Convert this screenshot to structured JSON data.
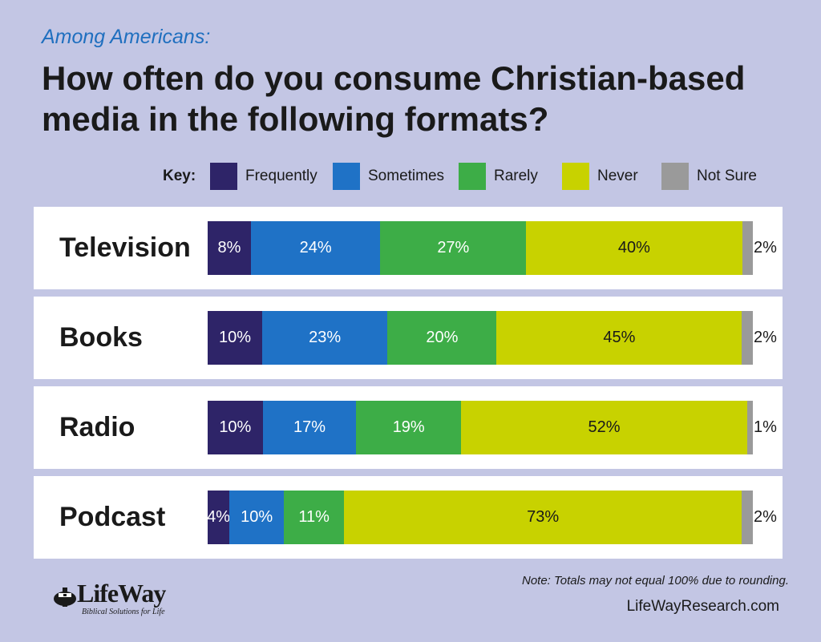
{
  "header": {
    "subtitle": "Among Americans:",
    "title": "How often do you consume Christian-based media in the following formats?"
  },
  "legend": {
    "key_label": "Key:",
    "items": [
      {
        "label": "Frequently",
        "color": "#2e2468"
      },
      {
        "label": "Sometimes",
        "color": "#1f72c6"
      },
      {
        "label": "Rarely",
        "color": "#3dad47"
      },
      {
        "label": "Never",
        "color": "#c8d200"
      },
      {
        "label": "Not Sure",
        "color": "#9a9a9a"
      }
    ]
  },
  "chart_data": {
    "type": "bar",
    "orientation": "horizontal",
    "stacked": true,
    "categories": [
      "Television",
      "Books",
      "Radio",
      "Podcast"
    ],
    "series": [
      {
        "name": "Frequently",
        "values": [
          8,
          10,
          10,
          4
        ],
        "labels": [
          "8%",
          "10%",
          "10%",
          "4%"
        ]
      },
      {
        "name": "Sometimes",
        "values": [
          24,
          23,
          17,
          10
        ],
        "labels": [
          "24%",
          "23%",
          "17%",
          "10%"
        ]
      },
      {
        "name": "Rarely",
        "values": [
          27,
          20,
          19,
          11
        ],
        "labels": [
          "27%",
          "20%",
          "19%",
          "11%"
        ]
      },
      {
        "name": "Never",
        "values": [
          40,
          45,
          52,
          73
        ],
        "labels": [
          "40%",
          "45%",
          "52%",
          "73%"
        ]
      },
      {
        "name": "Not Sure",
        "values": [
          2,
          2,
          1,
          2
        ],
        "labels": [
          "2%",
          "2%",
          "1%",
          "2%"
        ]
      }
    ],
    "title": "How often do you consume Christian-based media in the following formats?",
    "subtitle": "Among Americans:",
    "legend_position": "top"
  },
  "footer": {
    "note": "Note: Totals may not equal 100% due to rounding.",
    "site": "LifeWayResearch.com",
    "logo_text": "LifeWay",
    "logo_tagline": "Biblical Solutions for Life"
  }
}
